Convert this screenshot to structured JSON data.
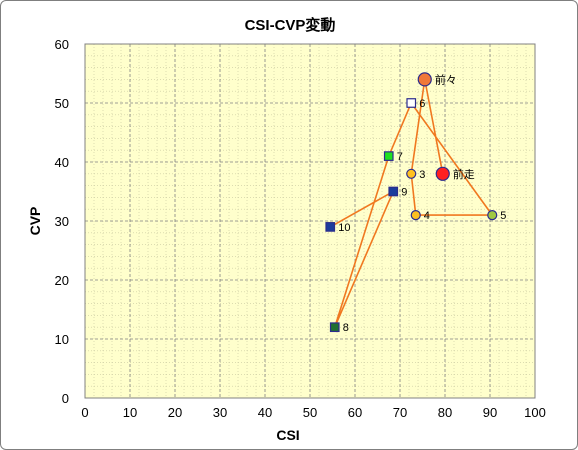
{
  "chart_data": {
    "type": "scatter",
    "title": "CSI-CVP変動",
    "xlabel": "CSI",
    "ylabel": "CVP",
    "xlim": [
      0,
      100
    ],
    "ylim": [
      0,
      60
    ],
    "x_ticks": [
      0,
      10,
      20,
      30,
      40,
      50,
      60,
      70,
      80,
      90,
      100
    ],
    "y_ticks": [
      0,
      10,
      20,
      30,
      40,
      50,
      60
    ],
    "grid": true,
    "minor_grid": true,
    "plot_background": "#ffffcc",
    "line_color": "#f07820",
    "points": [
      {
        "label": "前走",
        "x": 79.5,
        "y": 38,
        "marker": "circle",
        "fill": "#ff2020",
        "size": "large"
      },
      {
        "label": "前々",
        "x": 75.5,
        "y": 54,
        "marker": "circle",
        "fill": "#f07838",
        "size": "large"
      },
      {
        "label": "3",
        "x": 72.5,
        "y": 38,
        "marker": "circle",
        "fill": "#ffc020",
        "size": "small"
      },
      {
        "label": "4",
        "x": 73.5,
        "y": 31,
        "marker": "circle",
        "fill": "#ffc020",
        "size": "small"
      },
      {
        "label": "5",
        "x": 90.5,
        "y": 31,
        "marker": "circle",
        "fill": "#a0c840",
        "size": "small"
      },
      {
        "label": "6",
        "x": 72.5,
        "y": 50,
        "marker": "square",
        "fill": "#ffffff",
        "size": "small"
      },
      {
        "label": "7",
        "x": 67.5,
        "y": 41,
        "marker": "square",
        "fill": "#20e020",
        "size": "small"
      },
      {
        "label": "8",
        "x": 55.5,
        "y": 12,
        "marker": "square",
        "fill": "#207030",
        "size": "small"
      },
      {
        "label": "9",
        "x": 68.5,
        "y": 35,
        "marker": "square",
        "fill": "#1c3c9c",
        "size": "small"
      },
      {
        "label": "10",
        "x": 54.5,
        "y": 29,
        "marker": "square",
        "fill": "#1c3c9c",
        "size": "small"
      }
    ]
  }
}
